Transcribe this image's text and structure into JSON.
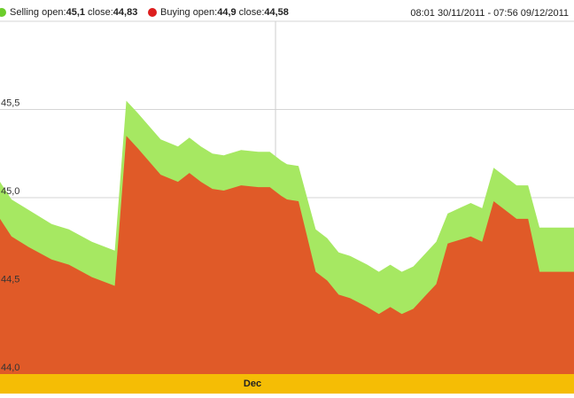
{
  "legend": {
    "selling": {
      "label": "Selling open:",
      "open_value": "45,1",
      "close_label": "close:",
      "close_value": "44,83",
      "color": "#6ccd2b"
    },
    "buying": {
      "label": "Buying open:",
      "open_value": "44,9",
      "close_label": "close:",
      "close_value": "44,58",
      "color": "#dd1e1e"
    }
  },
  "date_range": "08:01 30/11/2011 - 07:56 09/12/2011",
  "chart_data": {
    "type": "area",
    "title": "",
    "xlabel": "",
    "ylabel": "",
    "ylim": [
      44.0,
      46.0
    ],
    "y_ticks": [
      "44,0",
      "44,5",
      "45,0",
      "45,5"
    ],
    "y_tick_values": [
      44.0,
      44.5,
      45.0,
      45.5
    ],
    "x_tick_labels": [
      "Dec"
    ],
    "x_tick_positions": [
      48
    ],
    "grid": true,
    "legend_position": "top-left",
    "x": [
      0,
      2,
      5,
      9,
      12,
      16,
      20,
      22,
      24,
      28,
      31,
      33,
      35,
      37,
      39,
      42,
      45,
      47,
      49,
      50,
      52,
      55,
      57,
      59,
      61,
      64,
      66,
      68,
      70,
      72,
      74,
      76,
      78,
      80,
      82,
      84,
      86,
      88,
      90,
      92,
      94,
      95,
      97,
      98,
      100
    ],
    "series": [
      {
        "name": "Selling",
        "color": "#a6e862",
        "values": [
          45.09,
          44.99,
          44.93,
          44.85,
          44.82,
          44.75,
          44.7,
          45.55,
          45.48,
          45.33,
          45.29,
          45.34,
          45.29,
          45.25,
          45.24,
          45.27,
          45.26,
          45.26,
          45.21,
          45.19,
          45.18,
          44.82,
          44.77,
          44.69,
          44.67,
          44.62,
          44.58,
          44.62,
          44.58,
          44.61,
          44.68,
          44.75,
          44.91,
          44.94,
          44.97,
          44.94,
          45.17,
          45.12,
          45.07,
          45.07,
          44.83,
          44.83,
          44.83,
          44.83,
          44.83
        ]
      },
      {
        "name": "Buying",
        "color": "#e05a28",
        "values": [
          44.88,
          44.78,
          44.72,
          44.65,
          44.62,
          44.55,
          44.5,
          45.35,
          45.28,
          45.13,
          45.09,
          45.14,
          45.09,
          45.05,
          45.04,
          45.07,
          45.06,
          45.06,
          45.01,
          44.99,
          44.98,
          44.58,
          44.53,
          44.45,
          44.43,
          44.38,
          44.34,
          44.38,
          44.34,
          44.37,
          44.44,
          44.51,
          44.74,
          44.76,
          44.78,
          44.75,
          44.98,
          44.93,
          44.88,
          44.88,
          44.58,
          44.58,
          44.58,
          44.58,
          44.58
        ]
      }
    ]
  },
  "month_label": "Dec"
}
